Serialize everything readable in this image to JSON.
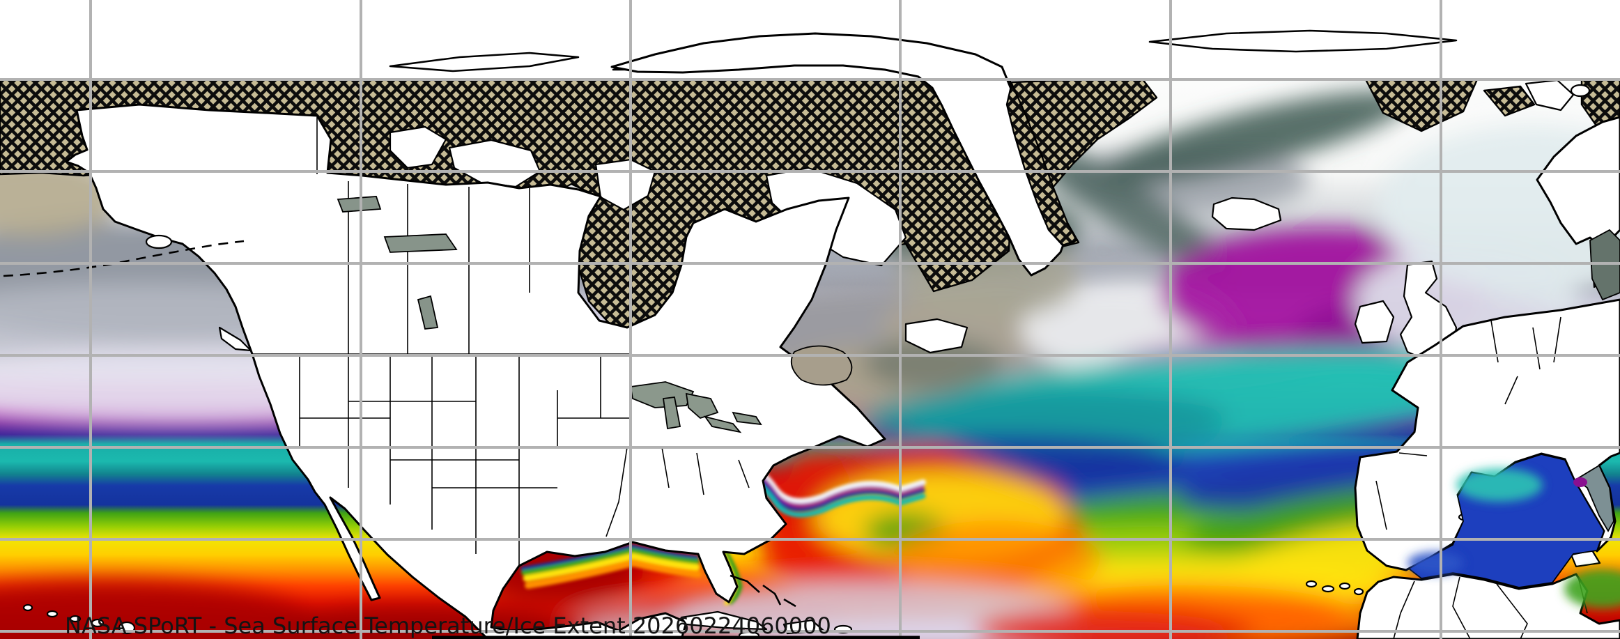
{
  "caption": {
    "text": "NASA SPoRT - Sea Surface Temperature/Ice Extent 20260224060000"
  },
  "map": {
    "type": "sea-surface-temperature-ice-extent-map",
    "graticule": {
      "color": "#b2b2b2",
      "width": 4,
      "x_lines": [
        130,
        518,
        905,
        1292,
        1680,
        2068
      ],
      "y_lines": [
        114,
        246,
        378,
        510,
        642,
        774,
        906
      ]
    },
    "ice": {
      "legend": "ice-extent-crosshatch",
      "fill": "#c6bb95",
      "hatch_color": "#0c0c0c",
      "hatch_tile": 17,
      "hatch_stroke": 4.6
    },
    "sst_gradient": {
      "note": "warm-to-cold latitudinal sea surface temperature shading",
      "stops": [
        [
          0.0,
          "#ffffff"
        ],
        [
          0.27,
          "#f7f8f7"
        ],
        [
          0.33,
          "#d9dcdf"
        ],
        [
          0.39,
          "#a8adb6"
        ],
        [
          0.445,
          "#a2a6b2"
        ],
        [
          0.47,
          "#c6c6d6"
        ],
        [
          0.52,
          "#dfdaeb"
        ],
        [
          0.575,
          "#ece7f3"
        ],
        [
          0.61,
          "#cf6cbe"
        ],
        [
          0.64,
          "#a313a2"
        ],
        [
          0.662,
          "#6d0e93"
        ],
        [
          0.68,
          "#391f97"
        ],
        [
          0.695,
          "#1aaea8"
        ],
        [
          0.722,
          "#1bb9ae"
        ],
        [
          0.742,
          "#12838e"
        ],
        [
          0.76,
          "#173aa8"
        ],
        [
          0.79,
          "#14339e"
        ],
        [
          0.803,
          "#3fa315"
        ],
        [
          0.824,
          "#95cf05"
        ],
        [
          0.845,
          "#f2e405"
        ],
        [
          0.868,
          "#ffcf00"
        ],
        [
          0.893,
          "#ff8e00"
        ],
        [
          0.917,
          "#ff4200"
        ],
        [
          0.945,
          "#e51300"
        ],
        [
          0.972,
          "#c00500"
        ],
        [
          1.0,
          "#9a0100"
        ]
      ]
    },
    "palette": {
      "land": "#ffffff",
      "coastline": "#000000",
      "shelf_gray": "#9b9ba1",
      "shelf_tan": "#aca189",
      "dark_slate_water": "#4e645c",
      "pale_lavender": "#e3dff0",
      "magenta": "#a312a0",
      "teal": "#1fc0b2",
      "navy": "#1b3cb4",
      "green": "#46aa16",
      "yellow": "#ffe409",
      "orange": "#ff8e00",
      "red": "#e51400",
      "dark_red": "#a80200",
      "pale_rose_tropics": "#d9bfc8",
      "lakes": "#8b988c",
      "caption_text": "#141414"
    }
  }
}
